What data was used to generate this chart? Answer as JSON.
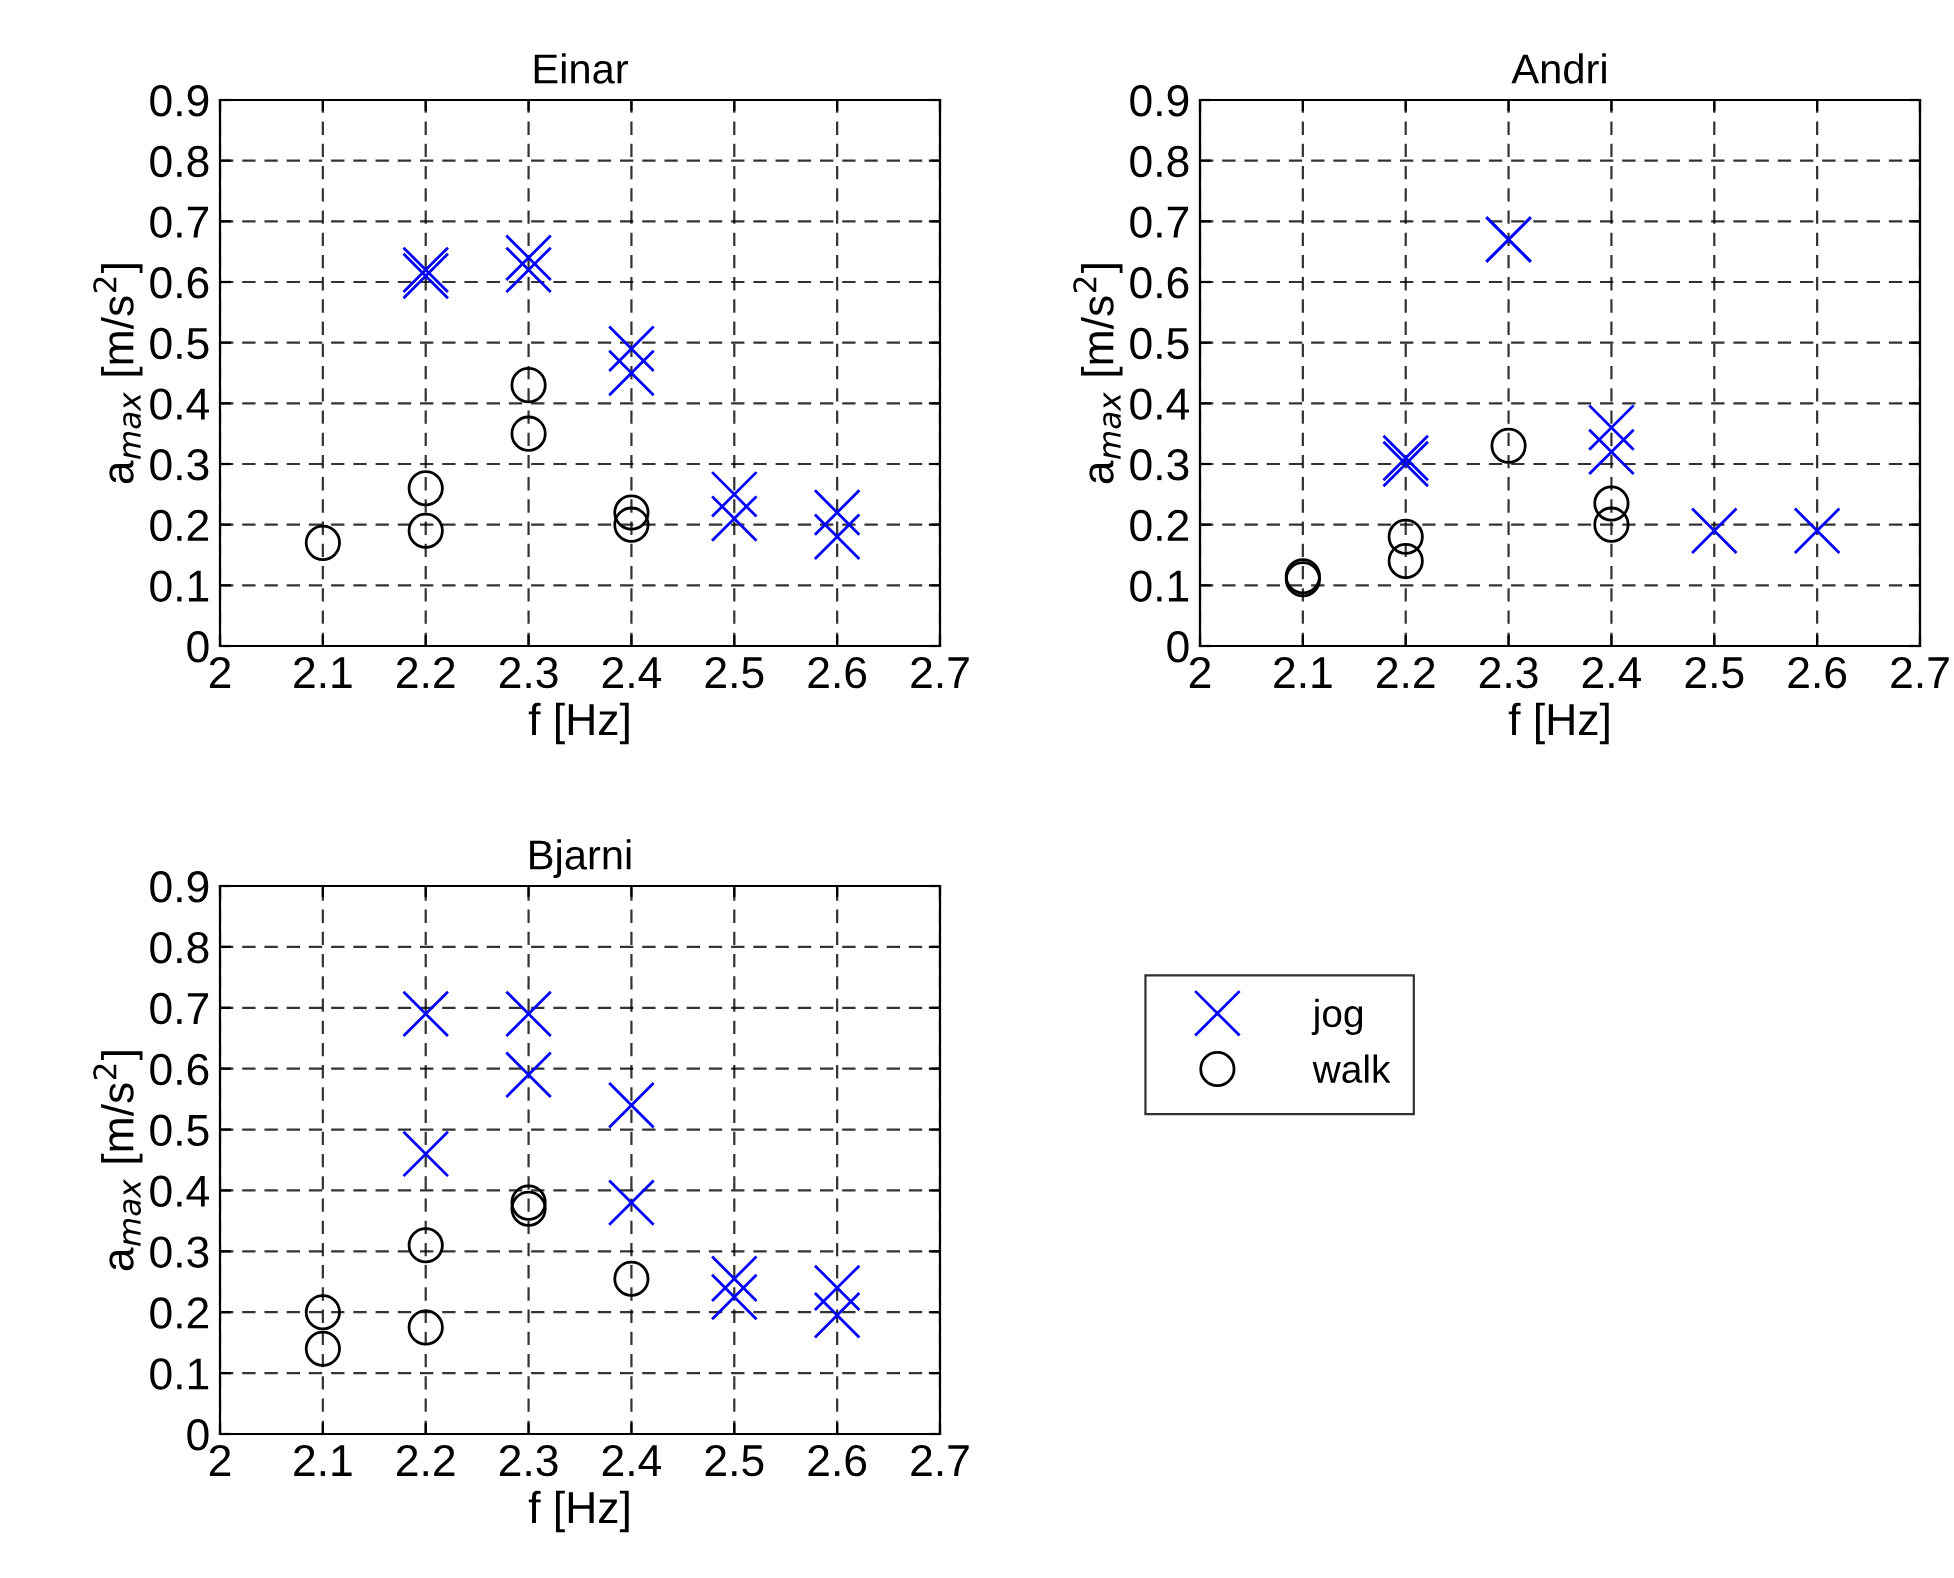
{
  "chart_data": [
    {
      "type": "scatter",
      "title": "Einar",
      "xlabel": "f [Hz]",
      "ylabel": "a$_{max}$ [m/s$^{2}$]",
      "xlim": [
        2,
        2.7
      ],
      "xticks": [
        2,
        2.1,
        2.2,
        2.3,
        2.4,
        2.5,
        2.6,
        2.7
      ],
      "ylim": [
        0,
        0.9
      ],
      "yticks": [
        0,
        0.1,
        0.2,
        0.3,
        0.4,
        0.5,
        0.6,
        0.7,
        0.8,
        0.9
      ],
      "grid": true,
      "series": [
        {
          "color": "#0000ff",
          "marker": "cross",
          "x": [
            2.2,
            2.2,
            2.3,
            2.3,
            2.4,
            2.4,
            2.5,
            2.5,
            2.6,
            2.6
          ],
          "values": [
            0.61,
            0.62,
            0.64,
            0.62,
            0.49,
            0.45,
            0.25,
            0.21,
            0.22,
            0.18
          ]
        },
        {
          "color": "#000000",
          "marker": "circle",
          "x": [
            2.1,
            2.2,
            2.2,
            2.3,
            2.3,
            2.4,
            2.4
          ],
          "values": [
            0.17,
            0.26,
            0.19,
            0.43,
            0.35,
            0.22,
            0.2
          ]
        }
      ]
    },
    {
      "type": "scatter",
      "title": "Andri",
      "xlabel": "f [Hz]",
      "ylabel": "a$_{max}$ [m/s$^{2}$]",
      "xlim": [
        2,
        2.7
      ],
      "xticks": [
        2,
        2.1,
        2.2,
        2.3,
        2.4,
        2.5,
        2.6,
        2.7
      ],
      "ylim": [
        0,
        0.9
      ],
      "yticks": [
        0,
        0.1,
        0.2,
        0.3,
        0.4,
        0.5,
        0.6,
        0.7,
        0.8,
        0.9
      ],
      "grid": true,
      "series": [
        {
          "color": "#0000ff",
          "marker": "cross",
          "x": [
            2.2,
            2.2,
            2.3,
            2.3,
            2.4,
            2.4,
            2.5,
            2.6
          ],
          "values": [
            0.3,
            0.31,
            0.67,
            0.67,
            0.36,
            0.32,
            0.19,
            0.19
          ]
        },
        {
          "color": "#000000",
          "marker": "circle",
          "x": [
            2.1,
            2.1,
            2.2,
            2.2,
            2.3,
            2.4,
            2.4
          ],
          "values": [
            0.11,
            0.115,
            0.18,
            0.14,
            0.33,
            0.235,
            0.2
          ]
        }
      ]
    },
    {
      "type": "scatter",
      "title": "Bjarni",
      "xlabel": "f [Hz]",
      "ylabel": "a$_{max}$ [m/s$^{2}$]",
      "xlim": [
        2,
        2.7
      ],
      "xticks": [
        2,
        2.1,
        2.2,
        2.3,
        2.4,
        2.5,
        2.6,
        2.7
      ],
      "ylim": [
        0,
        0.9
      ],
      "yticks": [
        0,
        0.1,
        0.2,
        0.3,
        0.4,
        0.5,
        0.6,
        0.7,
        0.8,
        0.9
      ],
      "grid": true,
      "legend": "right",
      "series": [
        {
          "name": "jog",
          "color": "#0000ff",
          "marker": "cross",
          "x": [
            2.2,
            2.2,
            2.3,
            2.3,
            2.4,
            2.4,
            2.5,
            2.5,
            2.6,
            2.6
          ],
          "values": [
            0.69,
            0.46,
            0.69,
            0.59,
            0.54,
            0.38,
            0.255,
            0.225,
            0.24,
            0.195
          ]
        },
        {
          "name": "walk",
          "color": "#000000",
          "marker": "circle",
          "x": [
            2.1,
            2.1,
            2.2,
            2.2,
            2.3,
            2.3,
            2.4
          ],
          "values": [
            0.2,
            0.14,
            0.31,
            0.175,
            0.38,
            0.37,
            0.255
          ]
        }
      ]
    }
  ]
}
